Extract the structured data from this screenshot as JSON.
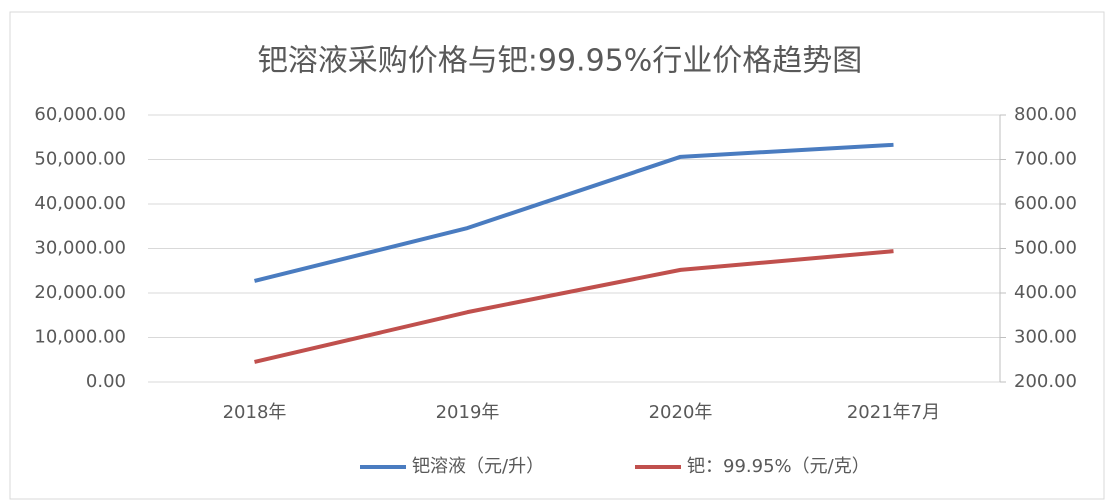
{
  "chart_data": {
    "type": "line",
    "title": "钯溶液采购价格与钯:99.95%行业价格趋势图",
    "categories": [
      "2018年",
      "2019年",
      "2020年",
      "2021年7月"
    ],
    "series": [
      {
        "name": "钯溶液（元/升）",
        "color": "#4a7cc0",
        "values": [
          22700,
          34600,
          50600,
          53300
        ]
      },
      {
        "name": "钯：99.95%（元/克）",
        "color": "#c0504d",
        "axis": "y2",
        "values": [
          245,
          357,
          452,
          494
        ]
      }
    ],
    "ylim": [
      0,
      60000
    ],
    "yticks": [
      {
        "value": 0,
        "label": "0.00"
      },
      {
        "value": 10000,
        "label": "10,000.00"
      },
      {
        "value": 20000,
        "label": "20,000.00"
      },
      {
        "value": 30000,
        "label": "30,000.00"
      },
      {
        "value": 40000,
        "label": "40,000.00"
      },
      {
        "value": 50000,
        "label": "50,000.00"
      },
      {
        "value": 60000,
        "label": "60,000.00"
      }
    ],
    "y2lim": [
      200,
      800
    ],
    "y2ticks": [
      {
        "value": 200,
        "label": "200.00"
      },
      {
        "value": 300,
        "label": "300.00"
      },
      {
        "value": 400,
        "label": "400.00"
      },
      {
        "value": 500,
        "label": "500.00"
      },
      {
        "value": 600,
        "label": "600.00"
      },
      {
        "value": 700,
        "label": "700.00"
      },
      {
        "value": 800,
        "label": "800.00"
      }
    ],
    "grid": true,
    "legend": "bottom"
  }
}
